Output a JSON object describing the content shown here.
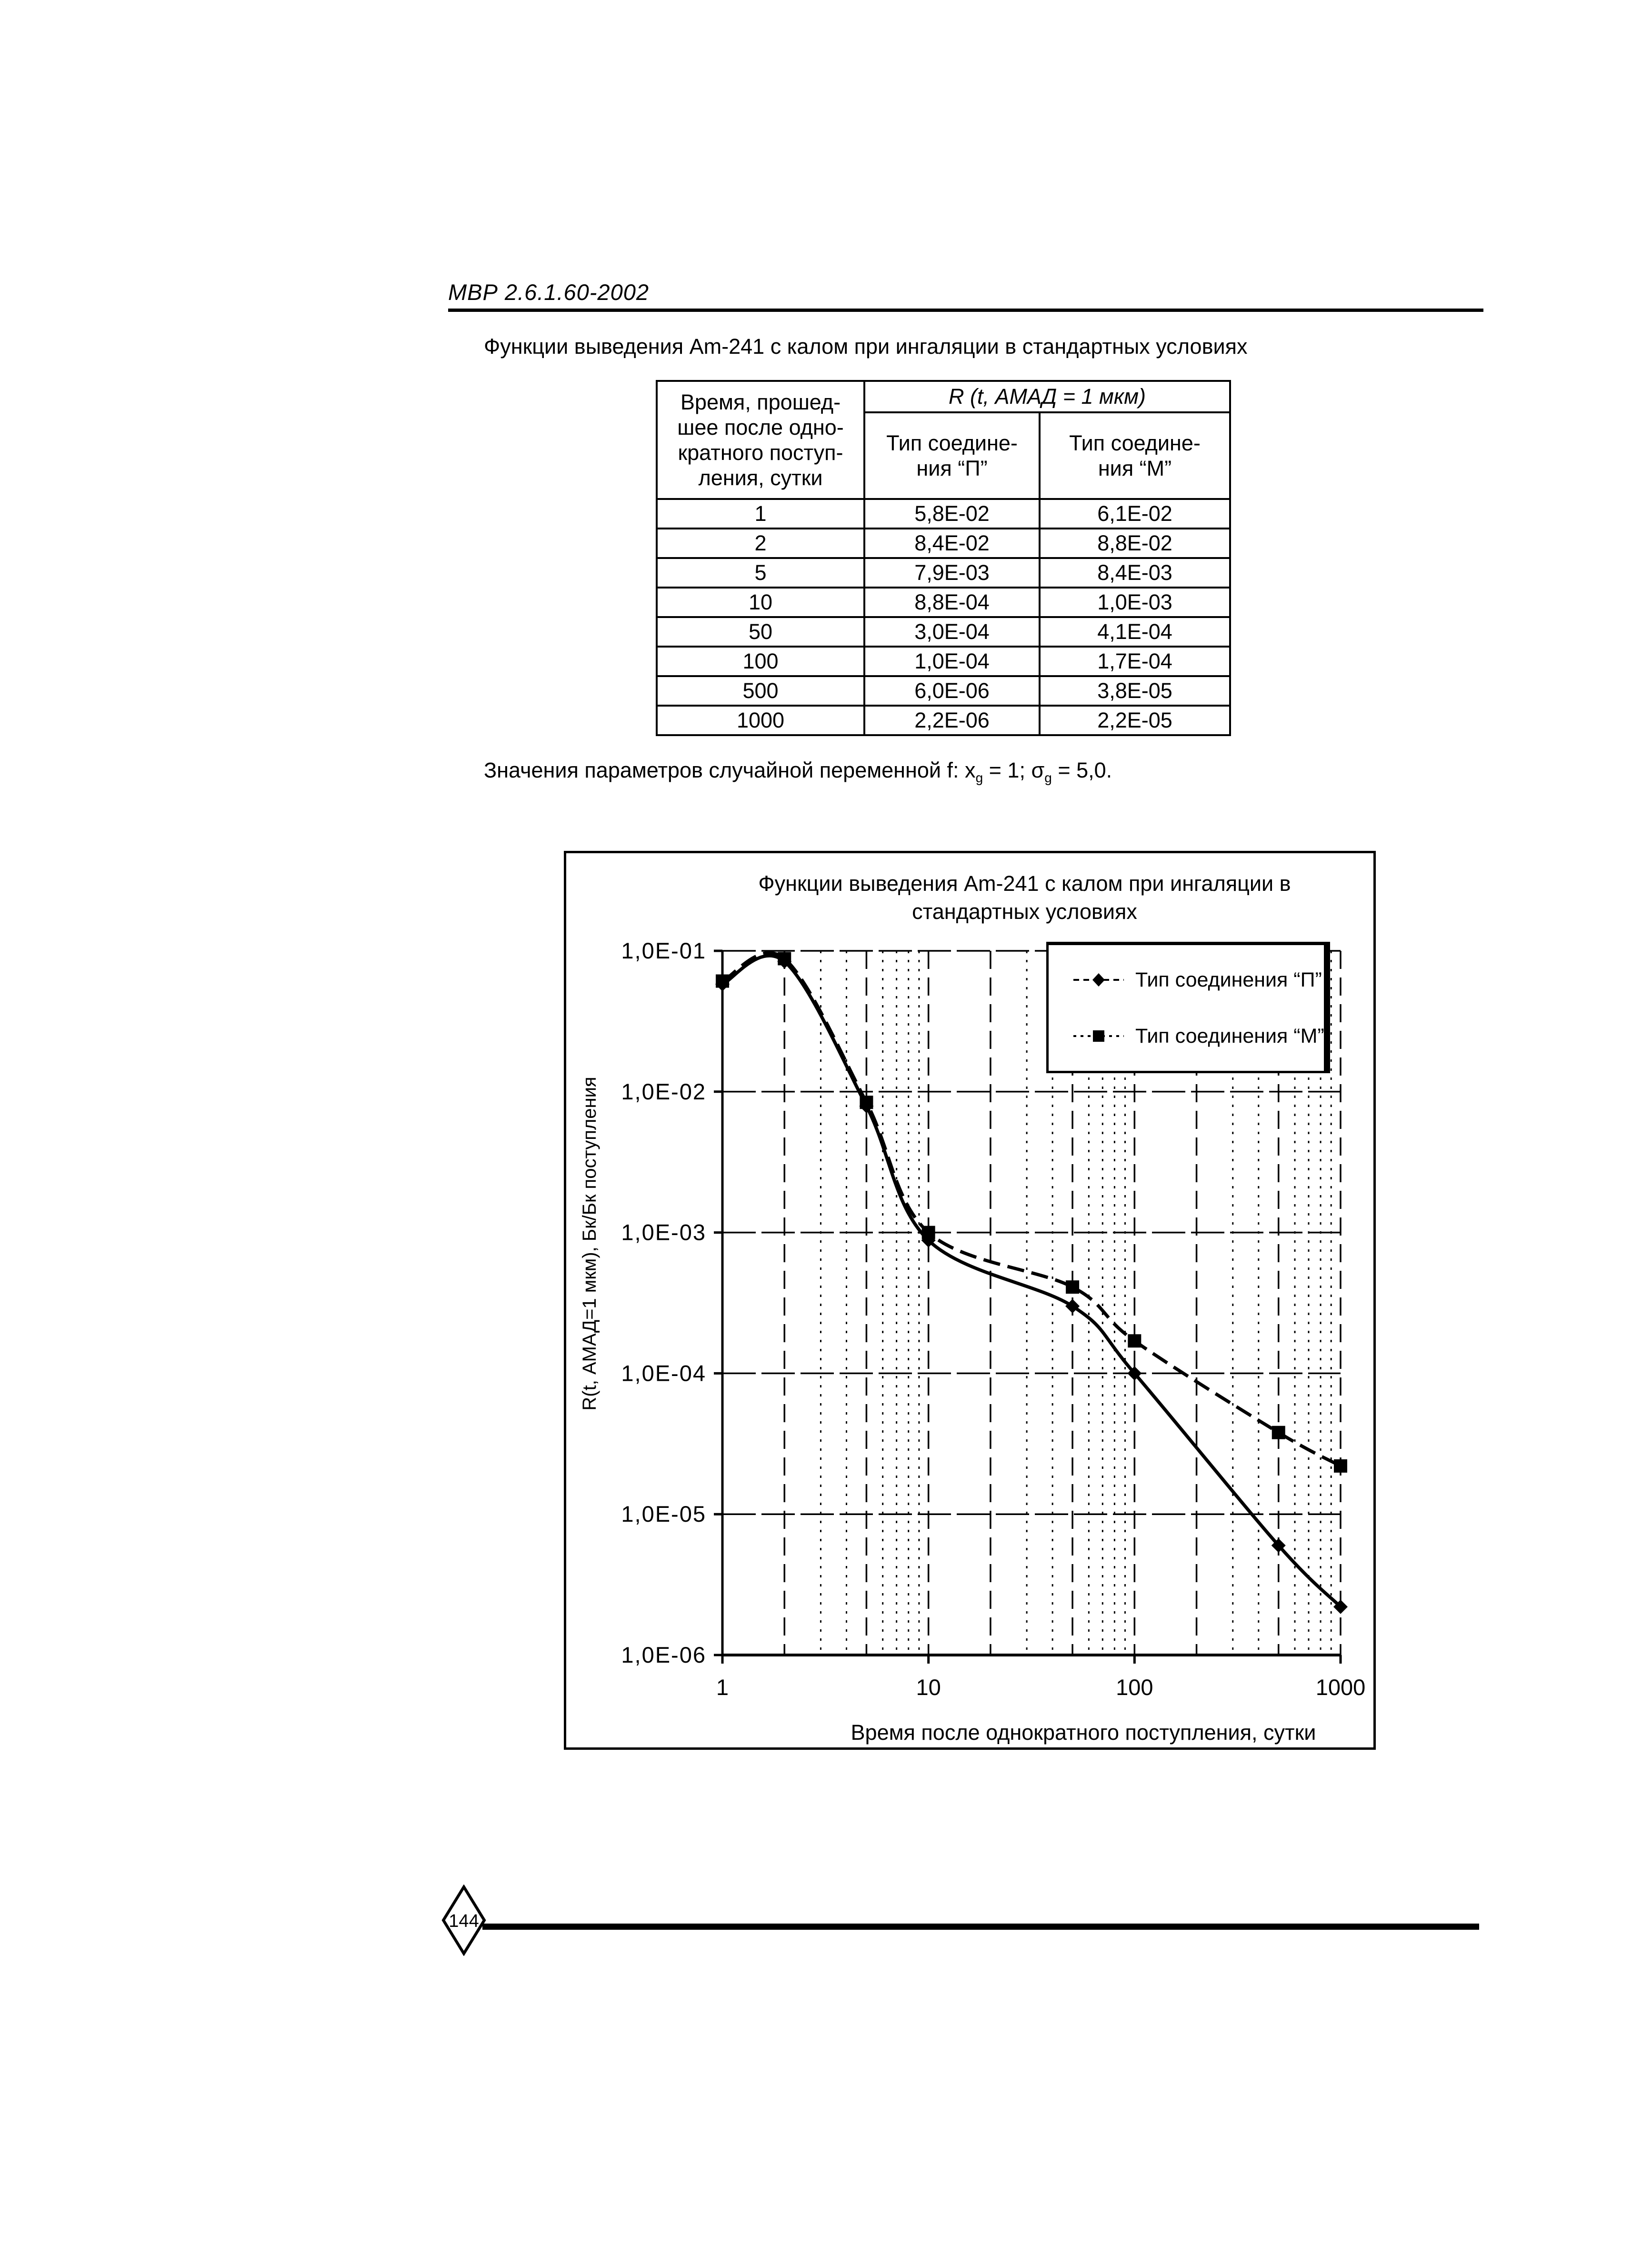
{
  "document": {
    "header": "МВР 2.6.1.60-2002",
    "page_number": "144"
  },
  "table_section": {
    "title": "Функции выведения Am-241 с калом при ингаляции в стандартных условиях",
    "table": {
      "time_header": "Время, прошед-\nшее после одно-\nкратного поступ-\nления, сутки",
      "span_header": "R (t, АМАД = 1 мкм)",
      "col_p_header": "Тип соедине-\nния “П”",
      "col_m_header": "Тип соедине-\nния “М”",
      "rows": [
        {
          "time": "1",
          "p": "5,8E-02",
          "m": "6,1E-02"
        },
        {
          "time": "2",
          "p": "8,4E-02",
          "m": "8,8E-02"
        },
        {
          "time": "5",
          "p": "7,9E-03",
          "m": "8,4E-03"
        },
        {
          "time": "10",
          "p": "8,8E-04",
          "m": "1,0E-03"
        },
        {
          "time": "50",
          "p": "3,0E-04",
          "m": "4,1E-04"
        },
        {
          "time": "100",
          "p": "1,0E-04",
          "m": "1,7E-04"
        },
        {
          "time": "500",
          "p": "6,0E-06",
          "m": "3,8E-05"
        },
        {
          "time": "1000",
          "p": "2,2E-06",
          "m": "2,2E-05"
        }
      ]
    },
    "note": {
      "p1": "Значения параметров случайной переменной f: x",
      "s1": "g",
      "p2": " = 1; σ",
      "s2": "g",
      "p3": " = 5,0."
    }
  },
  "chart": {
    "title_line1": "Функции выведения Am-241 с калом при ингаляции в",
    "title_line2": "стандартных условиях"
  },
  "chart_data": {
    "type": "line",
    "title": "Функции выведения Am-241 с калом при ингаляции в стандартных условиях",
    "xlabel": "Время после однократного поступления, сутки",
    "ylabel": "R(t, АМАД=1 мкм), Бк/Бк поступления",
    "xscale": "log",
    "yscale": "log",
    "xlim": [
      1,
      1000
    ],
    "ylim": [
      1e-06,
      0.1
    ],
    "grid": true,
    "legend_position": "top-right",
    "x": [
      1,
      2,
      5,
      10,
      50,
      100,
      500,
      1000
    ],
    "x_tick_labels": [
      "1",
      "10",
      "100",
      "1000"
    ],
    "y_tick_labels": [
      "1,0E-01",
      "1,0E-02",
      "1,0E-03",
      "1,0E-04",
      "1,0E-05",
      "1,0E-06"
    ],
    "series": [
      {
        "name": "Тип соединения  “П”",
        "marker": "diamond",
        "line_style": "solid",
        "values": [
          0.058,
          0.084,
          0.0079,
          0.00088,
          0.0003,
          0.0001,
          6e-06,
          2.2e-06
        ]
      },
      {
        "name": "Тип соединения  “М”",
        "marker": "square",
        "line_style": "dashed",
        "values": [
          0.061,
          0.088,
          0.0084,
          0.001,
          0.00041,
          0.00017,
          3.8e-05,
          2.2e-05
        ]
      }
    ]
  }
}
